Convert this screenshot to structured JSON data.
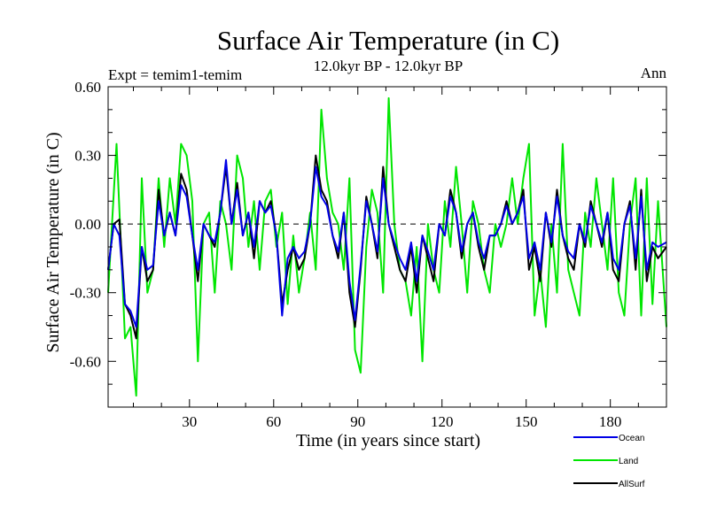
{
  "chart_data": {
    "type": "line",
    "title": "Surface Air Temperature (in C)",
    "subtitle": "12.0kyr BP - 12.0kyr BP",
    "left_label": "Expt = temim1-temim",
    "right_label": "Ann",
    "xlabel": "Time (in years since start)",
    "ylabel": "Surface Air Temperature (in C)",
    "xlim": [
      1,
      200
    ],
    "ylim": [
      -0.8,
      0.6
    ],
    "xticks": [
      30,
      60,
      90,
      120,
      150,
      180
    ],
    "xtick_labels": [
      "30",
      "60",
      "90",
      "120",
      "150",
      "180"
    ],
    "yticks": [
      0.6,
      0.3,
      0.0,
      -0.3,
      -0.6
    ],
    "ytick_labels": [
      "0.60",
      "0.30",
      "0.00",
      "-0.30",
      "-0.60"
    ],
    "zero_line": "dashed",
    "legend_position": "bottom-right",
    "series": [
      {
        "name": "Land",
        "color": "#00e600",
        "x": [
          1,
          4,
          7,
          9,
          11,
          13,
          15,
          17,
          19,
          21,
          23,
          25,
          27,
          29,
          31,
          33,
          35,
          37,
          39,
          41,
          43,
          45,
          47,
          49,
          51,
          53,
          55,
          57,
          59,
          61,
          63,
          65,
          67,
          69,
          71,
          73,
          75,
          77,
          79,
          81,
          83,
          85,
          87,
          89,
          91,
          93,
          95,
          97,
          99,
          101,
          103,
          105,
          107,
          109,
          111,
          113,
          115,
          117,
          119,
          121,
          123,
          125,
          127,
          129,
          131,
          133,
          135,
          137,
          139,
          141,
          143,
          145,
          147,
          149,
          151,
          153,
          155,
          157,
          159,
          161,
          163,
          165,
          167,
          169,
          171,
          173,
          175,
          177,
          179,
          181,
          183,
          185,
          187,
          189,
          191,
          193,
          195,
          197,
          200
        ],
        "values": [
          -0.3,
          0.35,
          -0.5,
          -0.45,
          -0.75,
          0.2,
          -0.3,
          -0.2,
          0.2,
          -0.1,
          0.2,
          0.0,
          0.35,
          0.3,
          0.1,
          -0.6,
          0.0,
          0.05,
          -0.3,
          0.1,
          0.0,
          -0.2,
          0.3,
          0.2,
          -0.1,
          0.1,
          -0.2,
          0.1,
          0.15,
          -0.1,
          0.05,
          -0.35,
          -0.05,
          -0.3,
          -0.15,
          0.05,
          -0.2,
          0.5,
          0.2,
          0.05,
          0.0,
          -0.2,
          0.2,
          -0.55,
          -0.65,
          -0.1,
          0.15,
          0.05,
          -0.3,
          0.55,
          0.0,
          -0.2,
          -0.25,
          -0.4,
          -0.1,
          -0.6,
          0.0,
          -0.2,
          -0.3,
          0.1,
          -0.1,
          0.25,
          0.0,
          -0.3,
          0.1,
          0.0,
          -0.2,
          -0.3,
          0.0,
          -0.1,
          0.0,
          0.2,
          0.0,
          0.2,
          0.35,
          -0.4,
          -0.2,
          -0.45,
          0.0,
          -0.3,
          0.35,
          -0.2,
          -0.3,
          -0.4,
          0.05,
          -0.1,
          0.2,
          0.0,
          -0.2,
          0.2,
          -0.3,
          -0.4,
          0.0,
          0.2,
          -0.4,
          0.2,
          -0.35,
          0.1,
          -0.45
        ]
      },
      {
        "name": "AllSurf",
        "color": "#000000",
        "x": [
          1,
          3,
          5,
          7,
          9,
          11,
          13,
          15,
          17,
          19,
          21,
          23,
          25,
          27,
          29,
          31,
          33,
          35,
          37,
          39,
          41,
          43,
          45,
          47,
          49,
          51,
          53,
          55,
          57,
          59,
          61,
          63,
          65,
          67,
          69,
          71,
          73,
          75,
          77,
          79,
          81,
          83,
          85,
          87,
          89,
          91,
          93,
          95,
          97,
          99,
          101,
          103,
          105,
          107,
          109,
          111,
          113,
          115,
          117,
          119,
          121,
          123,
          125,
          127,
          129,
          131,
          133,
          135,
          137,
          139,
          141,
          143,
          145,
          147,
          149,
          151,
          153,
          155,
          157,
          159,
          161,
          163,
          165,
          167,
          169,
          171,
          173,
          175,
          177,
          179,
          181,
          183,
          185,
          187,
          189,
          191,
          193,
          195,
          197,
          200
        ],
        "values": [
          -0.2,
          0.0,
          0.02,
          -0.35,
          -0.4,
          -0.5,
          -0.1,
          -0.25,
          -0.2,
          0.15,
          -0.05,
          0.05,
          -0.05,
          0.22,
          0.15,
          -0.05,
          -0.25,
          0.0,
          -0.05,
          -0.1,
          0.05,
          0.25,
          0.0,
          0.18,
          -0.05,
          0.05,
          -0.15,
          0.1,
          0.05,
          0.1,
          -0.05,
          -0.35,
          -0.2,
          -0.1,
          -0.2,
          -0.15,
          0.0,
          0.3,
          0.15,
          0.1,
          -0.05,
          -0.15,
          0.05,
          -0.3,
          -0.45,
          -0.2,
          0.12,
          0.0,
          -0.15,
          0.25,
          0.0,
          -0.1,
          -0.2,
          -0.25,
          -0.1,
          -0.3,
          -0.05,
          -0.15,
          -0.25,
          0.0,
          -0.05,
          0.15,
          0.05,
          -0.15,
          0.0,
          0.05,
          -0.1,
          -0.2,
          -0.05,
          -0.05,
          0.0,
          0.1,
          0.0,
          0.05,
          0.15,
          -0.2,
          -0.1,
          -0.25,
          0.05,
          -0.1,
          0.15,
          -0.05,
          -0.15,
          -0.2,
          0.0,
          -0.1,
          0.1,
          0.0,
          -0.1,
          0.05,
          -0.2,
          -0.25,
          0.0,
          0.1,
          -0.2,
          0.15,
          -0.25,
          -0.1,
          -0.15,
          -0.1
        ]
      },
      {
        "name": "Ocean",
        "color": "#0000e6",
        "x": [
          1,
          3,
          5,
          7,
          9,
          11,
          13,
          15,
          17,
          19,
          21,
          23,
          25,
          27,
          29,
          31,
          33,
          35,
          37,
          39,
          41,
          43,
          45,
          47,
          49,
          51,
          53,
          55,
          57,
          59,
          61,
          63,
          65,
          67,
          69,
          71,
          73,
          75,
          77,
          79,
          81,
          83,
          85,
          87,
          89,
          91,
          93,
          95,
          97,
          99,
          101,
          103,
          105,
          107,
          109,
          111,
          113,
          115,
          117,
          119,
          121,
          123,
          125,
          127,
          129,
          131,
          133,
          135,
          137,
          139,
          141,
          143,
          145,
          147,
          149,
          151,
          153,
          155,
          157,
          159,
          161,
          163,
          165,
          167,
          169,
          171,
          173,
          175,
          177,
          179,
          181,
          183,
          185,
          187,
          189,
          191,
          193,
          195,
          197,
          200
        ],
        "values": [
          -0.2,
          0.0,
          -0.05,
          -0.35,
          -0.38,
          -0.45,
          -0.1,
          -0.2,
          -0.18,
          0.1,
          -0.05,
          0.05,
          -0.05,
          0.17,
          0.12,
          -0.05,
          -0.2,
          0.0,
          -0.05,
          -0.08,
          0.05,
          0.28,
          0.0,
          0.15,
          -0.05,
          0.05,
          -0.1,
          0.1,
          0.05,
          0.08,
          -0.05,
          -0.4,
          -0.15,
          -0.1,
          -0.15,
          -0.12,
          0.0,
          0.25,
          0.12,
          0.08,
          -0.05,
          -0.12,
          0.05,
          -0.25,
          -0.42,
          -0.18,
          0.1,
          0.0,
          -0.12,
          0.2,
          0.0,
          -0.08,
          -0.15,
          -0.2,
          -0.08,
          -0.25,
          -0.05,
          -0.12,
          -0.2,
          0.0,
          -0.05,
          0.12,
          0.05,
          -0.12,
          0.0,
          0.05,
          -0.08,
          -0.15,
          -0.05,
          -0.05,
          0.0,
          0.08,
          0.0,
          0.05,
          0.12,
          -0.15,
          -0.08,
          -0.2,
          0.05,
          -0.08,
          0.12,
          -0.05,
          -0.12,
          -0.15,
          0.0,
          -0.08,
          0.08,
          0.0,
          -0.08,
          0.05,
          -0.15,
          -0.2,
          0.0,
          0.08,
          -0.15,
          0.12,
          -0.2,
          -0.08,
          -0.1,
          -0.08
        ]
      }
    ],
    "legend_order": [
      "Ocean",
      "Land",
      "AllSurf"
    ]
  }
}
